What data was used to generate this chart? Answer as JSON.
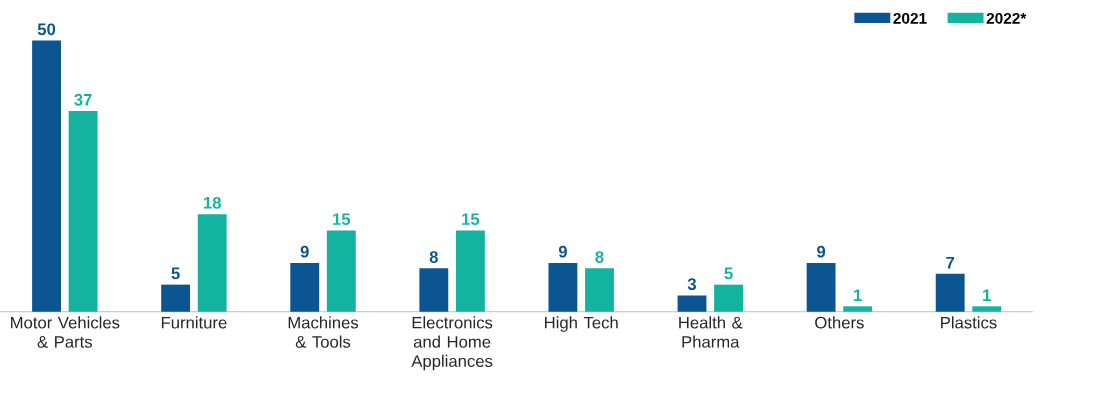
{
  "chart_data": {
    "type": "bar",
    "categories": [
      "Motor Vehicles & Parts",
      "Furniture",
      "Machines & Tools",
      "Electronics and Home Appliances",
      "High Tech",
      "Health & Pharma",
      "Others",
      "Plastics"
    ],
    "series": [
      {
        "name": "2021",
        "color": "#0b5592",
        "values": [
          50,
          5,
          9,
          8,
          9,
          3,
          9,
          7
        ]
      },
      {
        "name": "2022*",
        "color": "#14b3a0",
        "values": [
          37,
          18,
          15,
          15,
          8,
          5,
          1,
          1
        ]
      }
    ],
    "data_labels": true,
    "legend": "top right"
  }
}
